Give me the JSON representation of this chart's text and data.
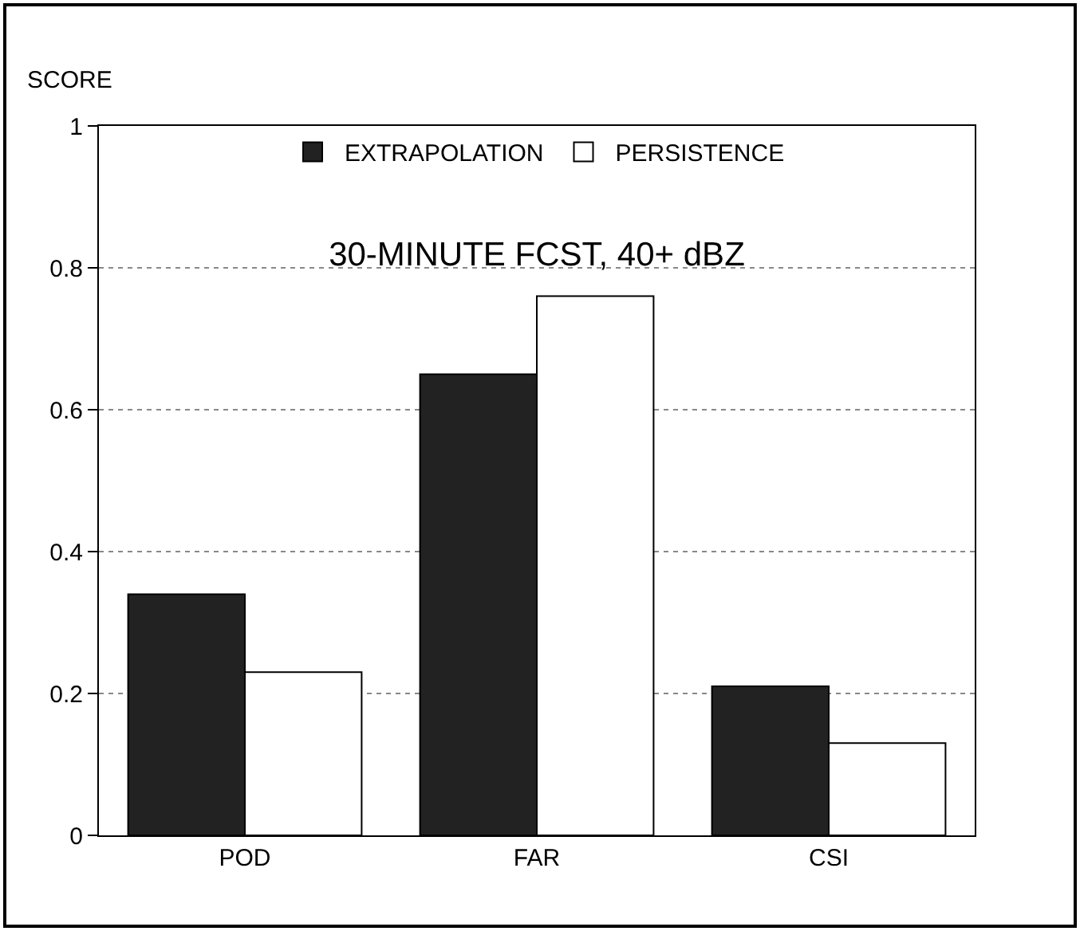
{
  "chart_data": {
    "type": "bar",
    "title": "30-MINUTE FCST, 40+ dBZ",
    "ylabel": "SCORE",
    "categories": [
      "POD",
      "FAR",
      "CSI"
    ],
    "series": [
      {
        "name": "EXTRAPOLATION",
        "color": "#222222",
        "values": [
          0.34,
          0.65,
          0.21
        ]
      },
      {
        "name": "PERSISTENCE",
        "color": "#ffffff",
        "values": [
          0.23,
          0.76,
          0.13
        ]
      }
    ],
    "ylim": [
      0,
      1
    ],
    "yticks": [
      0,
      0.2,
      0.4,
      0.6,
      0.8,
      1
    ],
    "grid": "y",
    "legend": "top"
  }
}
